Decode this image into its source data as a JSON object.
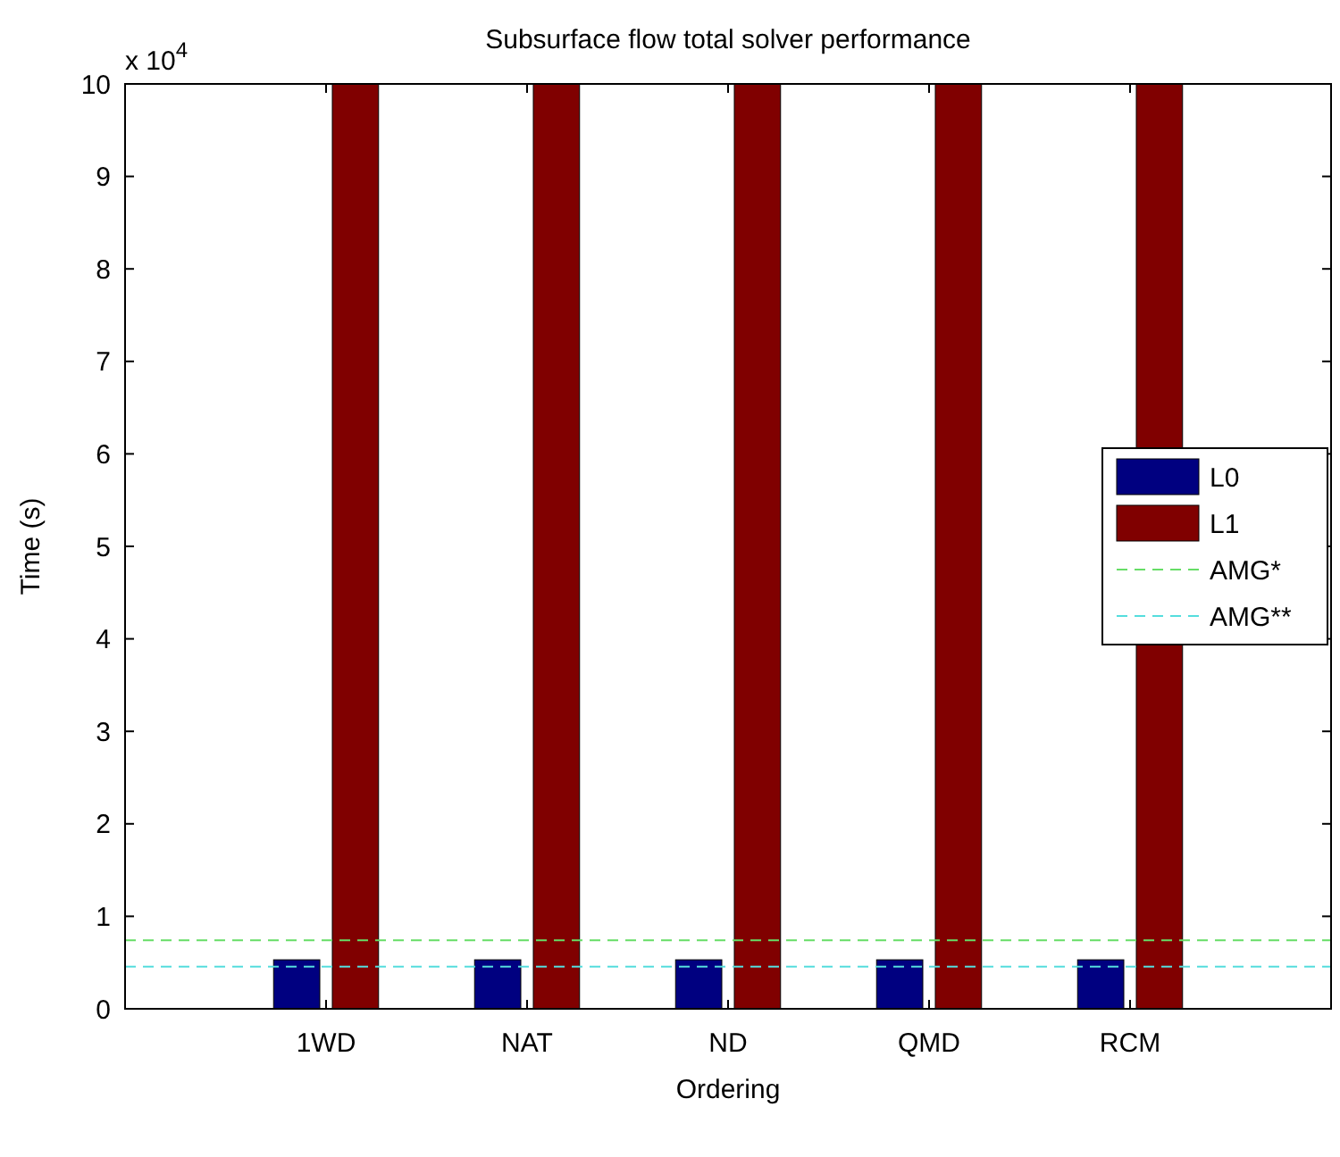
{
  "chart_data": {
    "type": "bar",
    "title": "Subsurface flow total solver performance",
    "xlabel": "Ordering",
    "ylabel": "Time (s)",
    "annotations": [
      "x 10$^{4}$"
    ],
    "categories": [
      "1WD",
      "NAT",
      "ND",
      "QMD",
      "RCM"
    ],
    "series": [
      {
        "name": "L0",
        "color": "#000080",
        "values": [
          0.53,
          0.53,
          0.53,
          0.53,
          0.53
        ]
      },
      {
        "name": "L1",
        "color": "#800000",
        "values": [
          10,
          10,
          10,
          10,
          10
        ]
      }
    ],
    "ref_lines": [
      {
        "axis": "y",
        "value": 0.74,
        "label": "AMG*",
        "color": "#66dd66",
        "line_style": "dashed"
      },
      {
        "axis": "y",
        "value": 0.455,
        "label": "AMG**",
        "color": "#55dddd",
        "line_style": "dashed"
      }
    ],
    "ylim": [
      0,
      10
    ],
    "yticks": [
      0,
      1,
      2,
      3,
      4,
      5,
      6,
      7,
      8,
      9,
      10
    ],
    "grid": false,
    "legend": "right"
  }
}
